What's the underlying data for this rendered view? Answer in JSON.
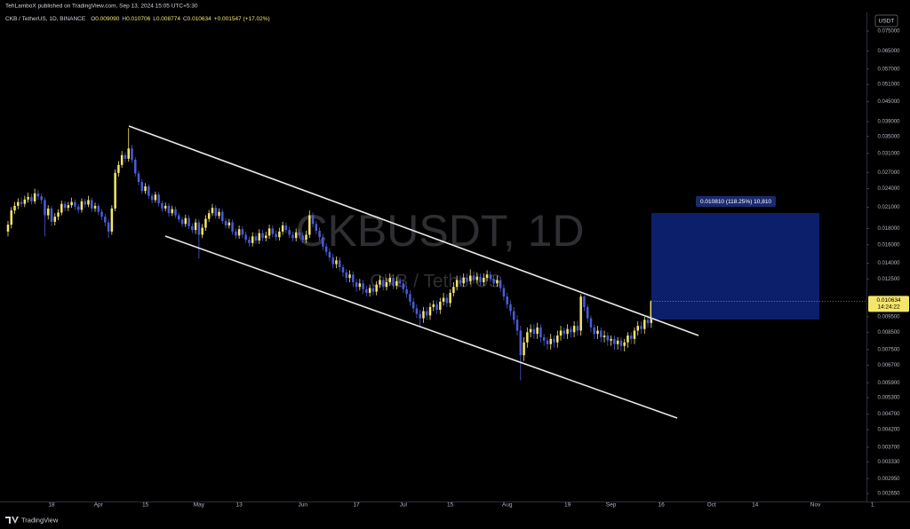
{
  "chart_data": {
    "type": "candlestick",
    "publisher": "TehLamboX published on TradingView.com, Sep 13, 2024 15:05 UTC+5:30",
    "title": "CKB / TetherUS, 1D, BINANCE",
    "ohlc_header": [
      {
        "key": "O",
        "value": "0.009090"
      },
      {
        "key": "H",
        "value": "0.010706"
      },
      {
        "key": "L",
        "value": "0.008774"
      },
      {
        "key": "C",
        "value": "0.010634"
      }
    ],
    "change": "+0.001547 (+17.02%)",
    "watermark": "CKBUSDT, 1D",
    "watermark_sub": "CKB / TetherUS",
    "currency": "USDT",
    "countdown": "14:24:22",
    "position_label": "0.010810 (118.25%) 10,810",
    "brand": "TradingView",
    "up_color": "#f4e66a",
    "down_color": "#4a5cd8",
    "log_scale": true,
    "ylim": [
      0.0025,
      0.0826
    ],
    "yticks": [
      {
        "value": 0.075,
        "label": "0.075000"
      },
      {
        "value": 0.065,
        "label": "0.065000"
      },
      {
        "value": 0.057,
        "label": "0.057000"
      },
      {
        "value": 0.051,
        "label": "0.051000"
      },
      {
        "value": 0.045,
        "label": "0.045000"
      },
      {
        "value": 0.039,
        "label": "0.039000"
      },
      {
        "value": 0.035,
        "label": "0.035000"
      },
      {
        "value": 0.031,
        "label": "0.031000"
      },
      {
        "value": 0.027,
        "label": "0.027000"
      },
      {
        "value": 0.024,
        "label": "0.024000"
      },
      {
        "value": 0.021,
        "label": "0.021000"
      },
      {
        "value": 0.018,
        "label": "0.018000"
      },
      {
        "value": 0.016,
        "label": "0.016000"
      },
      {
        "value": 0.014,
        "label": "0.014000"
      },
      {
        "value": 0.0125,
        "label": "0.012500"
      },
      {
        "value": 0.0095,
        "label": "0.009500"
      },
      {
        "value": 0.0085,
        "label": "0.008500"
      },
      {
        "value": 0.0075,
        "label": "0.007500"
      },
      {
        "value": 0.0067,
        "label": "0.006700"
      },
      {
        "value": 0.0059,
        "label": "0.005900"
      },
      {
        "value": 0.0053,
        "label": "0.005300"
      },
      {
        "value": 0.0047,
        "label": "0.004700"
      },
      {
        "value": 0.0042,
        "label": "0.004200"
      },
      {
        "value": 0.0037,
        "label": "0.003700"
      },
      {
        "value": 0.00333,
        "label": "0.003330"
      },
      {
        "value": 0.00295,
        "label": "0.002950"
      },
      {
        "value": 0.00265,
        "label": "0.002650"
      }
    ],
    "categories": [
      null,
      null,
      null,
      null,
      null,
      null,
      null,
      null,
      null,
      null,
      null,
      null,
      null,
      "18",
      null,
      null,
      null,
      null,
      null,
      null,
      null,
      null,
      null,
      null,
      null,
      null,
      null,
      "Apr",
      null,
      null,
      null,
      null,
      null,
      null,
      null,
      null,
      null,
      null,
      null,
      null,
      null,
      "15",
      null,
      null,
      null,
      null,
      null,
      null,
      null,
      null,
      null,
      null,
      null,
      null,
      null,
      null,
      null,
      "May",
      null,
      null,
      null,
      null,
      null,
      null,
      null,
      null,
      null,
      null,
      null,
      "13",
      null,
      null,
      null,
      null,
      null,
      null,
      null,
      null,
      null,
      null,
      null,
      null,
      null,
      null,
      null,
      null,
      null,
      null,
      "Jun",
      null,
      null,
      null,
      null,
      null,
      null,
      null,
      null,
      null,
      null,
      null,
      null,
      null,
      null,
      null,
      "17",
      null,
      null,
      null,
      null,
      null,
      null,
      null,
      null,
      null,
      null,
      null,
      null,
      null,
      "Jul",
      null,
      null,
      null,
      null,
      null,
      null,
      null,
      null,
      null,
      null,
      null,
      null,
      null,
      "15",
      null,
      null,
      null,
      null,
      null,
      null,
      null,
      null,
      null,
      null,
      null,
      null,
      null,
      null,
      null,
      null,
      "Aug",
      null,
      null,
      null,
      null,
      null,
      null,
      null,
      null,
      null,
      null,
      null,
      null,
      null,
      null,
      null,
      null,
      null,
      "19",
      null,
      null,
      null,
      null,
      null,
      null,
      null,
      null,
      null,
      null,
      null,
      null,
      "Sep",
      null,
      null,
      null,
      null,
      null,
      null,
      null,
      null,
      null,
      null,
      null,
      null,
      null,
      null,
      "16",
      null,
      null,
      null,
      null,
      null,
      null,
      null,
      null,
      null,
      null,
      null,
      null,
      null,
      null,
      "Oct",
      null,
      null,
      null,
      null,
      null,
      null,
      null,
      null,
      null,
      null,
      null,
      null,
      "14",
      null,
      null,
      null,
      null,
      null,
      null,
      null,
      null,
      null,
      null,
      null,
      null,
      null,
      null,
      null,
      null,
      null,
      "Nov",
      null,
      null,
      null,
      null,
      null,
      null,
      null,
      null,
      null,
      null,
      null,
      null,
      null,
      null,
      null,
      null,
      "1"
    ],
    "open": [
      0.0176,
      0.0185,
      0.0205,
      0.0212,
      0.0218,
      0.0215,
      0.0222,
      0.0226,
      0.0219,
      0.0232,
      0.0227,
      0.0221,
      0.0198,
      0.0208,
      0.0189,
      0.0196,
      0.0202,
      0.0215,
      0.0209,
      0.0213,
      0.0218,
      0.0211,
      0.0206,
      0.0219,
      0.0214,
      0.0221,
      0.0208,
      0.0212,
      0.0203,
      0.0196,
      0.0188,
      0.0176,
      0.0208,
      0.0269,
      0.0285,
      0.0306,
      0.0298,
      0.0321,
      0.0296,
      0.0268,
      0.0252,
      0.0236,
      0.0244,
      0.0228,
      0.0221,
      0.023,
      0.0216,
      0.0208,
      0.0212,
      0.0201,
      0.0207,
      0.0198,
      0.0192,
      0.0186,
      0.0194,
      0.0183,
      0.0178,
      0.0188,
      0.0172,
      0.0181,
      0.0193,
      0.0201,
      0.0209,
      0.0197,
      0.0203,
      0.019,
      0.0184,
      0.0188,
      0.0176,
      0.0171,
      0.0179,
      0.0172,
      0.0166,
      0.0162,
      0.017,
      0.0165,
      0.0174,
      0.0168,
      0.0171,
      0.018,
      0.0173,
      0.0169,
      0.0176,
      0.0184,
      0.0178,
      0.0172,
      0.0168,
      0.0175,
      0.0171,
      0.0166,
      0.0172,
      0.0198,
      0.0186,
      0.0177,
      0.0169,
      0.0158,
      0.0152,
      0.0146,
      0.0139,
      0.0143,
      0.0136,
      0.0131,
      0.0126,
      0.0129,
      0.0122,
      0.0118,
      0.0121,
      0.0116,
      0.0113,
      0.0117,
      0.0114,
      0.012,
      0.0124,
      0.0118,
      0.0122,
      0.0126,
      0.0119,
      0.0123,
      0.0121,
      0.0116,
      0.0112,
      0.0106,
      0.0101,
      0.0097,
      0.0094,
      0.0099,
      0.0096,
      0.0102,
      0.0104,
      0.01,
      0.0106,
      0.0109,
      0.0105,
      0.0113,
      0.0118,
      0.0124,
      0.0121,
      0.0126,
      0.0123,
      0.0128,
      0.0124,
      0.0127,
      0.0122,
      0.0126,
      0.0129,
      0.0125,
      0.0121,
      0.0124,
      0.0117,
      0.011,
      0.0104,
      0.0099,
      0.0093,
      0.0086,
      0.0072,
      0.0079,
      0.0085,
      0.0087,
      0.0084,
      0.0088,
      0.0082,
      0.008,
      0.0078,
      0.0081,
      0.0079,
      0.0083,
      0.0086,
      0.0084,
      0.0087,
      0.0085,
      0.0089,
      0.0086,
      0.011,
      0.0102,
      0.0094,
      0.0088,
      0.0084,
      0.0086,
      0.0082,
      0.0083,
      0.008,
      0.0081,
      0.0078,
      0.008,
      0.0077,
      0.0079,
      0.0083,
      0.0081,
      0.0086,
      0.0089,
      0.0087,
      0.0093,
      0.00909,
      null,
      null,
      null,
      null,
      null,
      null,
      null,
      null,
      null,
      null,
      null,
      null,
      null,
      null,
      null,
      null,
      null,
      null,
      null,
      null,
      null,
      null,
      null,
      null,
      null,
      null,
      null,
      null,
      null,
      null,
      null,
      null,
      null,
      null,
      null,
      null,
      null,
      null,
      null,
      null,
      null,
      null,
      null,
      null,
      null,
      null,
      null,
      null,
      null,
      null,
      null,
      null,
      null,
      null,
      null,
      null,
      null,
      null,
      null,
      null,
      null,
      null,
      null,
      null,
      null,
      null
    ],
    "high": [
      0.019,
      0.021,
      0.0218,
      0.0224,
      0.0225,
      0.0228,
      0.0233,
      0.0231,
      0.024,
      0.0238,
      0.0232,
      0.0225,
      0.0213,
      0.0212,
      0.0201,
      0.0207,
      0.022,
      0.0219,
      0.0218,
      0.0225,
      0.0222,
      0.0215,
      0.0224,
      0.0223,
      0.0228,
      0.0225,
      0.0217,
      0.0215,
      0.0207,
      0.02,
      0.0192,
      0.0213,
      0.0276,
      0.0293,
      0.0315,
      0.0312,
      0.0372,
      0.033,
      0.0301,
      0.0273,
      0.0257,
      0.025,
      0.0248,
      0.0232,
      0.0235,
      0.0234,
      0.022,
      0.0217,
      0.0216,
      0.0212,
      0.0211,
      0.0202,
      0.0196,
      0.0199,
      0.0198,
      0.0187,
      0.0193,
      0.0192,
      0.0186,
      0.0198,
      0.0206,
      0.0215,
      0.0213,
      0.0208,
      0.0207,
      0.0194,
      0.0193,
      0.0192,
      0.018,
      0.0184,
      0.0183,
      0.0176,
      0.017,
      0.0175,
      0.0174,
      0.0179,
      0.0178,
      0.0176,
      0.0185,
      0.0184,
      0.0177,
      0.0181,
      0.0189,
      0.0188,
      0.0182,
      0.0176,
      0.018,
      0.0179,
      0.0175,
      0.0177,
      0.0205,
      0.0202,
      0.019,
      0.0181,
      0.0173,
      0.0162,
      0.0156,
      0.015,
      0.0147,
      0.0146,
      0.0139,
      0.0134,
      0.0133,
      0.0132,
      0.0125,
      0.0125,
      0.0124,
      0.0119,
      0.012,
      0.012,
      0.0123,
      0.0128,
      0.0127,
      0.0126,
      0.013,
      0.0129,
      0.0127,
      0.0126,
      0.0124,
      0.0119,
      0.0115,
      0.0109,
      0.0104,
      0.01,
      0.0102,
      0.0102,
      0.0105,
      0.0107,
      0.0107,
      0.0109,
      0.0113,
      0.0112,
      0.0116,
      0.0122,
      0.0128,
      0.0128,
      0.013,
      0.013,
      0.0134,
      0.0132,
      0.0131,
      0.013,
      0.013,
      0.0133,
      0.0132,
      0.0128,
      0.0128,
      0.0127,
      0.012,
      0.0113,
      0.0107,
      0.0102,
      0.0096,
      0.0089,
      0.0082,
      0.0088,
      0.009,
      0.009,
      0.0091,
      0.009,
      0.0084,
      0.0082,
      0.0084,
      0.0083,
      0.0086,
      0.0089,
      0.0088,
      0.009,
      0.0089,
      0.0092,
      0.0092,
      0.0112,
      0.0111,
      0.0104,
      0.0096,
      0.009,
      0.0089,
      0.0088,
      0.0086,
      0.0085,
      0.0083,
      0.0083,
      0.0082,
      0.0082,
      0.0081,
      0.0085,
      0.0085,
      0.0088,
      0.0092,
      0.0092,
      0.0095,
      0.0096,
      0.010706,
      null,
      null,
      null,
      null,
      null,
      null,
      null,
      null,
      null,
      null,
      null,
      null,
      null,
      null,
      null,
      null,
      null,
      null,
      null,
      null,
      null,
      null,
      null,
      null,
      null,
      null,
      null,
      null,
      null,
      null,
      null,
      null,
      null,
      null,
      null,
      null,
      null,
      null,
      null,
      null,
      null,
      null,
      null,
      null,
      null,
      null,
      null,
      null,
      null,
      null,
      null,
      null,
      null,
      null,
      null,
      null,
      null,
      null,
      null,
      null,
      null,
      null,
      null,
      null,
      null,
      null
    ],
    "low": [
      0.017,
      0.018,
      0.02,
      0.0207,
      0.021,
      0.021,
      0.0217,
      0.0214,
      0.0215,
      0.0221,
      0.0215,
      0.017,
      0.0192,
      0.0183,
      0.0184,
      0.0191,
      0.0198,
      0.0204,
      0.0204,
      0.0209,
      0.0206,
      0.0201,
      0.0202,
      0.0209,
      0.021,
      0.0203,
      0.0203,
      0.0198,
      0.0191,
      0.0183,
      0.0168,
      0.0172,
      0.0204,
      0.0262,
      0.0279,
      0.029,
      0.0292,
      0.0289,
      0.0262,
      0.0246,
      0.0231,
      0.0231,
      0.0223,
      0.0216,
      0.0217,
      0.0211,
      0.0203,
      0.0204,
      0.0196,
      0.0197,
      0.0194,
      0.0188,
      0.0182,
      0.0182,
      0.0179,
      0.0174,
      0.0173,
      0.0145,
      0.0168,
      0.0177,
      0.0189,
      0.0197,
      0.0193,
      0.0193,
      0.0186,
      0.018,
      0.018,
      0.0172,
      0.0167,
      0.0167,
      0.0168,
      0.0162,
      0.0158,
      0.0158,
      0.0161,
      0.0161,
      0.0164,
      0.0164,
      0.0167,
      0.0169,
      0.0165,
      0.0165,
      0.0172,
      0.0174,
      0.0168,
      0.0164,
      0.0164,
      0.0167,
      0.0162,
      0.0162,
      0.0168,
      0.0181,
      0.0173,
      0.0165,
      0.0154,
      0.0148,
      0.0142,
      0.0135,
      0.0135,
      0.0132,
      0.0127,
      0.0122,
      0.0122,
      0.0118,
      0.0114,
      0.0115,
      0.0112,
      0.011,
      0.011,
      0.0111,
      0.0111,
      0.0117,
      0.0115,
      0.0115,
      0.0119,
      0.0116,
      0.0116,
      0.0118,
      0.0113,
      0.0109,
      0.0103,
      0.0098,
      0.0094,
      0.0088,
      0.0091,
      0.0093,
      0.0093,
      0.0099,
      0.0097,
      0.0097,
      0.0103,
      0.0102,
      0.0102,
      0.011,
      0.0115,
      0.0118,
      0.0118,
      0.012,
      0.012,
      0.0121,
      0.0121,
      0.0119,
      0.0119,
      0.0123,
      0.0122,
      0.0118,
      0.0118,
      0.0114,
      0.0107,
      0.0101,
      0.0096,
      0.009,
      0.0083,
      0.006,
      0.0069,
      0.0076,
      0.0082,
      0.0081,
      0.0081,
      0.0079,
      0.0077,
      0.0075,
      0.0075,
      0.0076,
      0.0076,
      0.008,
      0.0081,
      0.0081,
      0.0082,
      0.0082,
      0.0083,
      0.0083,
      0.0099,
      0.0091,
      0.0085,
      0.0081,
      0.0081,
      0.0079,
      0.0079,
      0.0077,
      0.0077,
      0.0075,
      0.0075,
      0.0074,
      0.0074,
      0.0076,
      0.0078,
      0.0078,
      0.0083,
      0.0084,
      0.0084,
      0.0088,
      0.008774,
      null,
      null,
      null,
      null,
      null,
      null,
      null,
      null,
      null,
      null,
      null,
      null,
      null,
      null,
      null,
      null,
      null,
      null,
      null,
      null,
      null,
      null,
      null,
      null,
      null,
      null,
      null,
      null,
      null,
      null,
      null,
      null,
      null,
      null,
      null,
      null,
      null,
      null,
      null,
      null,
      null,
      null,
      null,
      null,
      null,
      null,
      null,
      null,
      null,
      null,
      null,
      null,
      null,
      null,
      null,
      null,
      null,
      null,
      null,
      null,
      null,
      null,
      null,
      null,
      null,
      null
    ],
    "close": [
      0.0185,
      0.0205,
      0.0212,
      0.0218,
      0.0215,
      0.0222,
      0.0226,
      0.0219,
      0.0232,
      0.0227,
      0.0221,
      0.0198,
      0.0208,
      0.0189,
      0.0196,
      0.0202,
      0.0215,
      0.0209,
      0.0213,
      0.0218,
      0.0211,
      0.0206,
      0.0219,
      0.0214,
      0.0221,
      0.0208,
      0.0212,
      0.0203,
      0.0196,
      0.0188,
      0.0176,
      0.0208,
      0.0269,
      0.0285,
      0.0306,
      0.0298,
      0.0321,
      0.0296,
      0.0268,
      0.0252,
      0.0236,
      0.0244,
      0.0228,
      0.0221,
      0.023,
      0.0216,
      0.0208,
      0.0212,
      0.0201,
      0.0207,
      0.0198,
      0.0192,
      0.0186,
      0.0194,
      0.0183,
      0.0178,
      0.0188,
      0.0172,
      0.0181,
      0.0193,
      0.0201,
      0.0209,
      0.0197,
      0.0203,
      0.019,
      0.0184,
      0.0188,
      0.0176,
      0.0171,
      0.0179,
      0.0172,
      0.0166,
      0.0162,
      0.017,
      0.0165,
      0.0174,
      0.0168,
      0.0171,
      0.018,
      0.0173,
      0.0169,
      0.0176,
      0.0184,
      0.0178,
      0.0172,
      0.0168,
      0.0175,
      0.0171,
      0.0166,
      0.0172,
      0.0198,
      0.0186,
      0.0177,
      0.0169,
      0.0158,
      0.0152,
      0.0146,
      0.0139,
      0.0143,
      0.0136,
      0.0131,
      0.0126,
      0.0129,
      0.0122,
      0.0118,
      0.0121,
      0.0116,
      0.0113,
      0.0117,
      0.0114,
      0.012,
      0.0124,
      0.0118,
      0.0122,
      0.0126,
      0.0119,
      0.0123,
      0.0121,
      0.0116,
      0.0112,
      0.0106,
      0.0101,
      0.0097,
      0.0094,
      0.0099,
      0.0096,
      0.0102,
      0.0104,
      0.01,
      0.0106,
      0.0109,
      0.0105,
      0.0113,
      0.0118,
      0.0124,
      0.0121,
      0.0126,
      0.0123,
      0.0128,
      0.0124,
      0.0127,
      0.0122,
      0.0126,
      0.0129,
      0.0125,
      0.0121,
      0.0124,
      0.0117,
      0.011,
      0.0104,
      0.0099,
      0.0093,
      0.0086,
      0.0072,
      0.0079,
      0.0085,
      0.0087,
      0.0084,
      0.0088,
      0.0082,
      0.008,
      0.0078,
      0.0081,
      0.0079,
      0.0083,
      0.0086,
      0.0084,
      0.0087,
      0.0085,
      0.0089,
      0.0086,
      0.011,
      0.0102,
      0.0094,
      0.0088,
      0.0084,
      0.0086,
      0.0082,
      0.0083,
      0.008,
      0.0081,
      0.0078,
      0.008,
      0.0077,
      0.0079,
      0.0083,
      0.0081,
      0.0086,
      0.0089,
      0.0087,
      0.0093,
      0.00909,
      0.010634,
      null,
      null,
      null,
      null,
      null,
      null,
      null,
      null,
      null,
      null,
      null,
      null,
      null,
      null,
      null,
      null,
      null,
      null,
      null,
      null,
      null,
      null,
      null,
      null,
      null,
      null,
      null,
      null,
      null,
      null,
      null,
      null,
      null,
      null,
      null,
      null,
      null,
      null,
      null,
      null,
      null,
      null,
      null,
      null,
      null,
      null,
      null,
      null,
      null,
      null,
      null,
      null,
      null,
      null,
      null,
      null,
      null,
      null,
      null,
      null,
      null,
      null,
      null,
      null,
      null,
      null
    ]
  }
}
